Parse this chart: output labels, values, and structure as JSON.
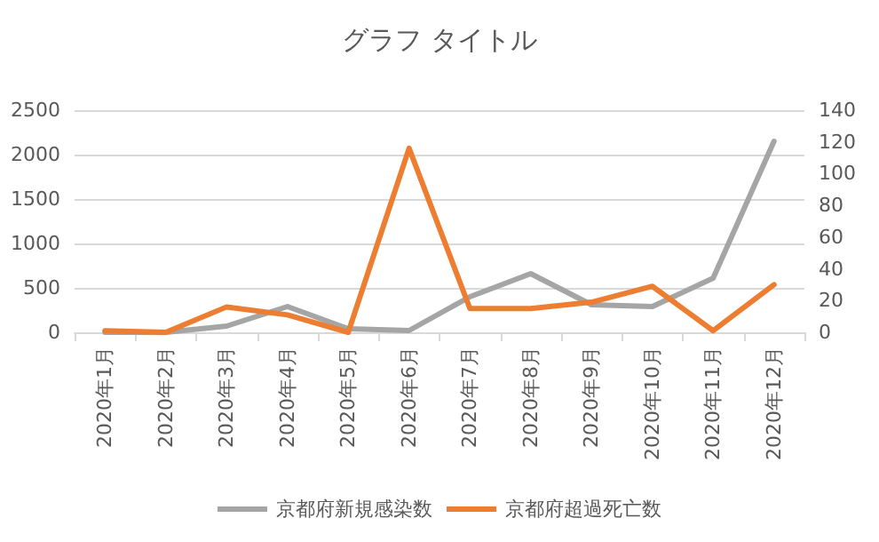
{
  "chart_data": {
    "type": "line",
    "title": "グラフ タイトル",
    "categories": [
      "2020年1月",
      "2020年2月",
      "2020年3月",
      "2020年4月",
      "2020年5月",
      "2020年6月",
      "2020年7月",
      "2020年8月",
      "2020年9月",
      "2020年10月",
      "2020年11月",
      "2020年12月"
    ],
    "series": [
      {
        "name": "京都府新規感染数",
        "color": "#a5a5a5",
        "values": [
          0,
          0,
          70,
          290,
          40,
          20,
          400,
          660,
          310,
          290,
          610,
          2150
        ]
      },
      {
        "name": "京都府超過死亡数",
        "color": "#ed7d31",
        "axis": "y2",
        "values": [
          1,
          0,
          16,
          11,
          0,
          116,
          15,
          15,
          19,
          29,
          1,
          30
        ]
      }
    ],
    "ylim": [
      0,
      2500
    ],
    "yticks": [
      0,
      500,
      1000,
      1500,
      2000,
      2500
    ],
    "y2lim": [
      0,
      140
    ],
    "y2ticks": [
      0,
      20,
      40,
      60,
      80,
      100,
      120,
      140
    ],
    "grid": "y",
    "legend": "bottom",
    "marker": "none",
    "line_style": "solid"
  }
}
